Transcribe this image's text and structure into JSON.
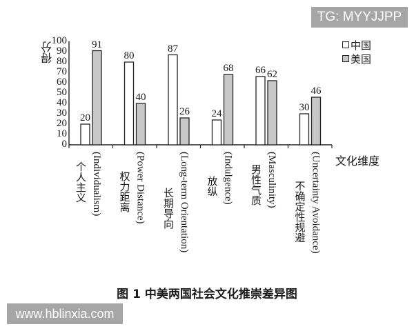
{
  "chart_data": {
    "type": "bar",
    "title": "图 1   中美两国社会文化推崇差异图",
    "xlabel": "文化维度",
    "ylabel": "得分",
    "ylim": [
      0,
      100
    ],
    "yticks": [
      0,
      10,
      20,
      30,
      40,
      50,
      60,
      70,
      80,
      90,
      100
    ],
    "grid": false,
    "legend_position": "top-right",
    "categories": [
      {
        "cn": "个人主义",
        "en": "(Individualism)"
      },
      {
        "cn": "权力距离",
        "en": "(Power Distance)"
      },
      {
        "cn": "长期导向",
        "en": "(Long-term Orientation)"
      },
      {
        "cn": "放纵",
        "en": "(Indulgence)"
      },
      {
        "cn": "男性气质",
        "en": "(Masculinity)"
      },
      {
        "cn": "不确定性规避",
        "en": "(Uncertainty Avoidance)"
      }
    ],
    "series": [
      {
        "name": "中国",
        "color": "#ffffff",
        "values": [
          20,
          80,
          87,
          24,
          66,
          30
        ]
      },
      {
        "name": "美国",
        "color": "#c8c8c8",
        "values": [
          91,
          40,
          26,
          68,
          62,
          46
        ]
      }
    ]
  },
  "watermarks": {
    "top": "TG: MYYJJPP",
    "bottom": "www.hblinxia.com"
  },
  "layout": {
    "cn_label_tops": [
      234,
      248,
      272,
      255,
      238,
      262
    ]
  }
}
